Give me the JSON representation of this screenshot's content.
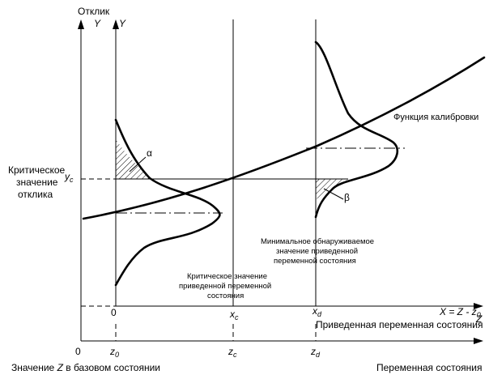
{
  "axes": {
    "response_title": "Отклик",
    "y_outer": "Y",
    "y_inner": "Y",
    "z_arrow": "Z",
    "x_equation": "X = Z - z",
    "x_equation_sub": "0",
    "reduced_axis_label": "Приведенная переменная состояния",
    "state_axis_label": "Переменная состояния",
    "base_state_label_a": "Значение",
    "base_state_label_z": "Z",
    "base_state_label_b": "в базовом состоянии"
  },
  "ticks": {
    "x_zero": "0",
    "x_c": "x",
    "x_c_sub": "c",
    "x_d": "x",
    "x_d_sub": "d",
    "z_zero": "0",
    "z0": "z",
    "z0_sub": "0",
    "zc": "z",
    "zc_sub": "c",
    "zd": "z",
    "zd_sub": "d",
    "yc": "y",
    "yc_sub": "c"
  },
  "labels": {
    "critical_response": [
      "Критическое",
      "значение",
      "отклика"
    ],
    "calibration_function": "Функция калибровки",
    "alpha": "α",
    "beta": "β",
    "critical_value_note": [
      "Критическое значение",
      "приведенной переменной",
      "состояния"
    ],
    "min_detectable_note": [
      "Минимальное обнаруживаемое",
      "значение приведенной",
      "переменной состояния"
    ]
  }
}
